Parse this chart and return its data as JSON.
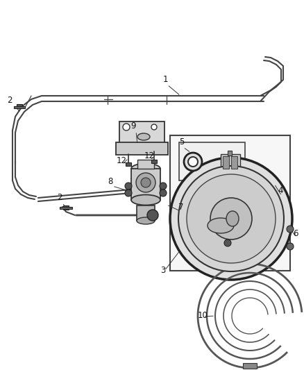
{
  "bg_color": "#ffffff",
  "fig_width": 4.38,
  "fig_height": 5.33,
  "dpi": 100,
  "lc": "#555555",
  "lc_dark": "#333333",
  "lc_light": "#888888"
}
